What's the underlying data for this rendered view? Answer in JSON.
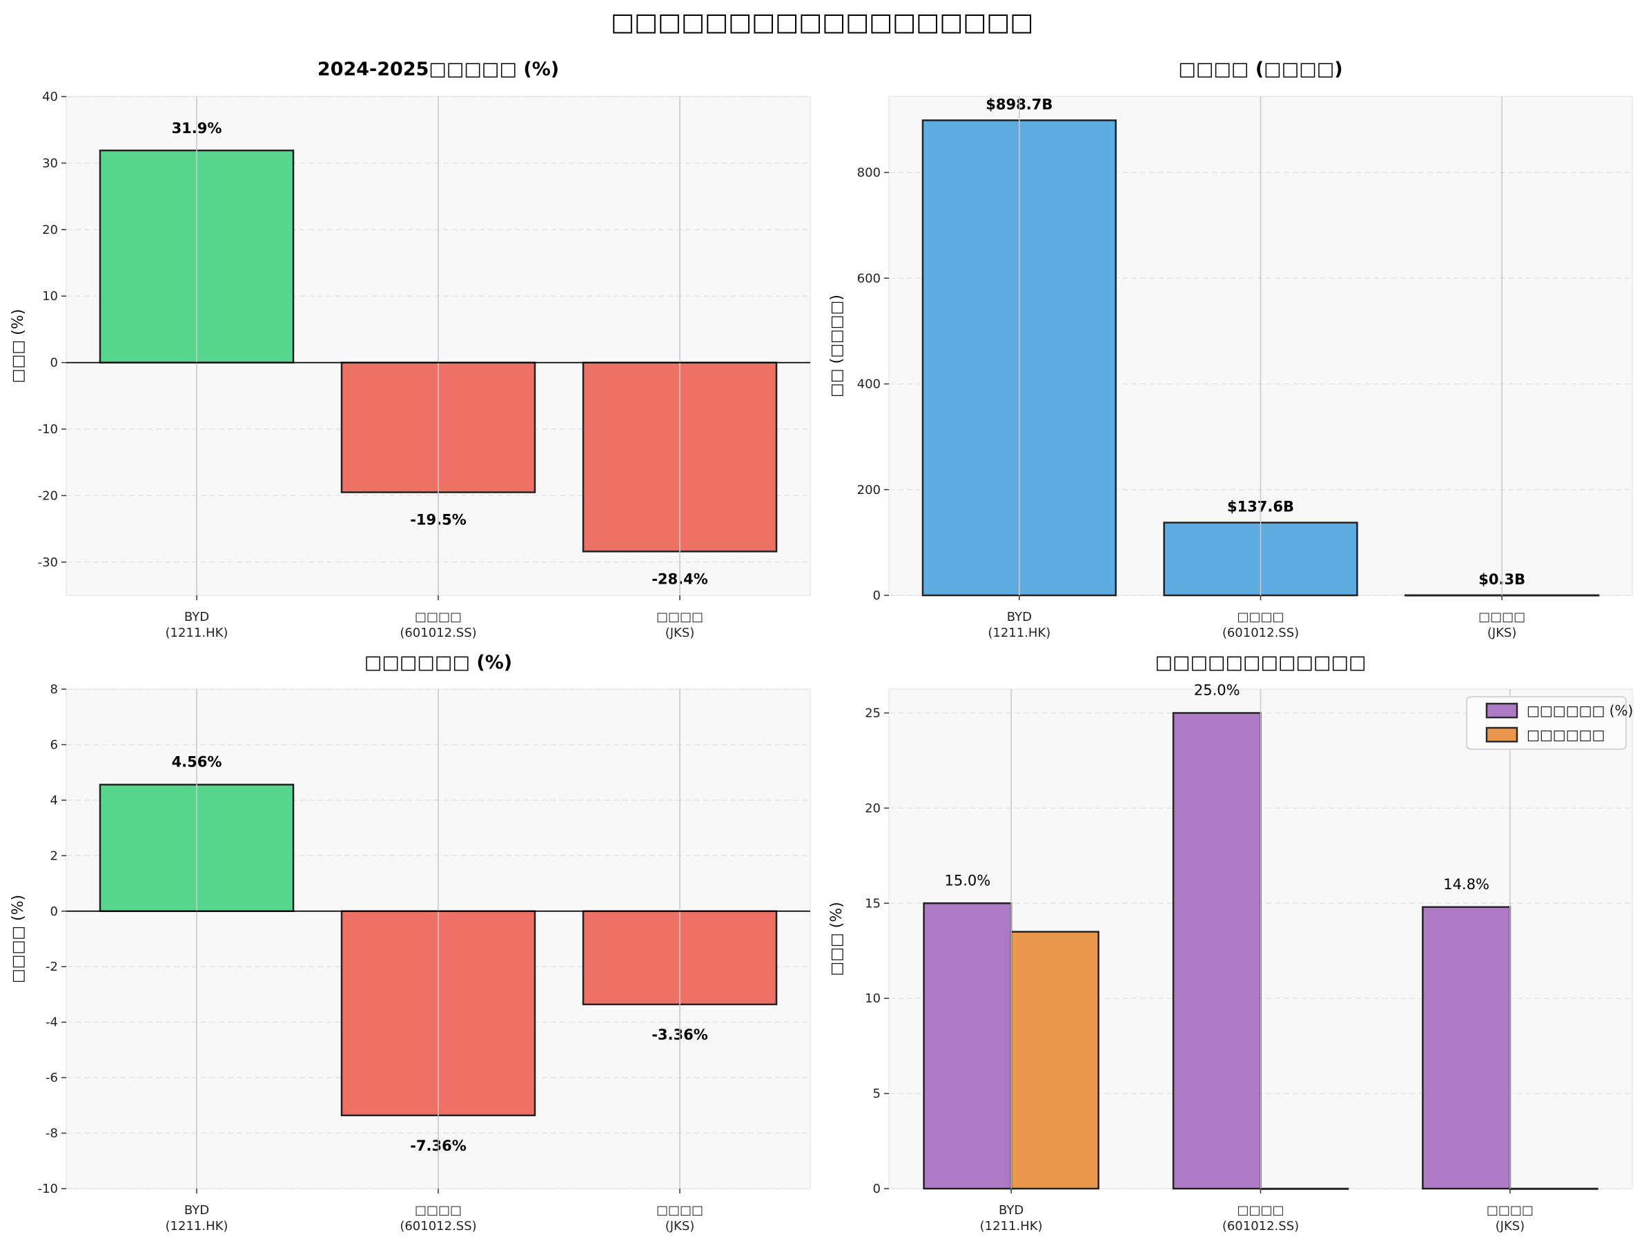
{
  "suptitle": "□□□□□□□□□□□□□□□□□□",
  "chart_data": [
    {
      "type": "bar",
      "title": "2024-2025□□□□□ (%)",
      "ylabel": "□□□ (%)",
      "categories": [
        "BYD\n(1211.HK)",
        "□□□□\n(601012.SS)",
        "□□□□\n(JKS)"
      ],
      "ylim": [
        -35,
        40
      ],
      "yticks": [
        -30,
        -20,
        -10,
        0,
        10,
        20,
        30,
        40
      ],
      "grid": true,
      "zero_line": true,
      "series": [
        {
          "values": [
            31.9,
            -19.5,
            -28.4
          ],
          "colors": [
            "#58d68d",
            "#ec7063",
            "#ec7063"
          ],
          "labels": [
            "31.9%",
            "-19.5%",
            "-28.4%"
          ]
        }
      ],
      "label_weight": "bold"
    },
    {
      "type": "bar",
      "title": "□□□□ (□□□□)",
      "ylabel": "□□ (□□□□)",
      "categories": [
        "BYD\n(1211.HK)",
        "□□□□\n(601012.SS)",
        "□□□□\n(JKS)"
      ],
      "ylim": [
        0,
        943.6
      ],
      "yticks": [
        0,
        200,
        400,
        600,
        800
      ],
      "grid": true,
      "zero_line": false,
      "series": [
        {
          "values": [
            898.7,
            137.6,
            0.3
          ],
          "colors": [
            "#5dade2",
            "#5dade2",
            "#5dade2"
          ],
          "labels": [
            "$898.7B",
            "$137.6B",
            "$0.3B"
          ]
        }
      ],
      "label_weight": "bold"
    },
    {
      "type": "bar",
      "title": "□□□□□□ (%)",
      "ylabel": "□□□□ (%)",
      "categories": [
        "BYD\n(1211.HK)",
        "□□□□\n(601012.SS)",
        "□□□□\n(JKS)"
      ],
      "ylim": [
        -10,
        8
      ],
      "yticks": [
        -10,
        -8,
        -6,
        -4,
        -2,
        0,
        2,
        4,
        6,
        8
      ],
      "grid": true,
      "zero_line": true,
      "series": [
        {
          "values": [
            4.56,
            -7.36,
            -3.36
          ],
          "colors": [
            "#58d68d",
            "#ec7063",
            "#ec7063"
          ],
          "labels": [
            "4.56%",
            "-7.36%",
            "-3.36%"
          ]
        }
      ],
      "label_weight": "bold"
    },
    {
      "type": "bar",
      "title": "□□□□□□□□□□□□",
      "ylabel": "□□□ (%)",
      "categories": [
        "BYD\n(1211.HK)",
        "□□□□\n(601012.SS)",
        "□□□□\n(JKS)"
      ],
      "ylim": [
        0,
        26.25
      ],
      "yticks": [
        0,
        5,
        10,
        15,
        20,
        25
      ],
      "grid": true,
      "zero_line": false,
      "legend": "top-right",
      "series": [
        {
          "name": "□□□□□□ (%)",
          "values": [
            15.0,
            25.0,
            14.8
          ],
          "color": "#af7ac5",
          "labels": [
            "15.0%",
            "25.0%",
            "14.8%"
          ]
        },
        {
          "name": "□□□□□□",
          "values": [
            13.5,
            0,
            0
          ],
          "color": "#eb984e"
        }
      ],
      "label_weight": "normal"
    }
  ]
}
